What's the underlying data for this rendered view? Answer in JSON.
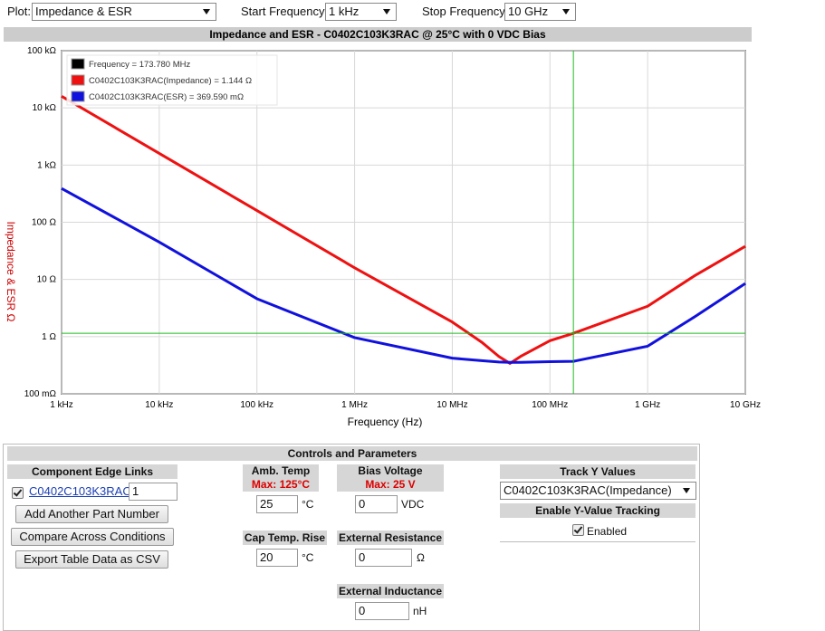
{
  "toolbar": {
    "plot_label": "Plot:",
    "plot_value": "Impedance & ESR",
    "start_label": "Start Frequency:",
    "start_value": "1 kHz",
    "stop_label": "Stop Frequency:",
    "stop_value": "10 GHz"
  },
  "chart_data": {
    "type": "line",
    "title": "Impedance and ESR - C0402C103K3RAC @ 25°C with 0 VDC Bias",
    "x_label": "Frequency (Hz)",
    "y_label": "Impedance & ESR Ω",
    "xscale": "log",
    "yscale": "log",
    "grid": true,
    "xlim": [
      1000,
      10000000000
    ],
    "ylim": [
      0.1,
      100000
    ],
    "xticks": [
      {
        "value": 1000,
        "label": "1 kHz"
      },
      {
        "value": 10000,
        "label": "10 kHz"
      },
      {
        "value": 100000,
        "label": "100 kHz"
      },
      {
        "value": 1000000,
        "label": "1 MHz"
      },
      {
        "value": 10000000,
        "label": "10 MHz"
      },
      {
        "value": 100000000,
        "label": "100 MHz"
      },
      {
        "value": 1000000000,
        "label": "1 GHz"
      },
      {
        "value": 10000000000,
        "label": "10 GHz"
      }
    ],
    "yticks": [
      {
        "value": 0.1,
        "label": "100 mΩ"
      },
      {
        "value": 1,
        "label": "1 Ω"
      },
      {
        "value": 10,
        "label": "10 Ω"
      },
      {
        "value": 100,
        "label": "100 Ω"
      },
      {
        "value": 1000,
        "label": "1 kΩ"
      },
      {
        "value": 10000,
        "label": "10 kΩ"
      },
      {
        "value": 100000,
        "label": "100 kΩ"
      }
    ],
    "x": [
      1000,
      10000,
      100000,
      1000000,
      10000000,
      20000000,
      30000000,
      39000000,
      50000000,
      100000000,
      173780000,
      1000000000,
      3000000000,
      10000000000
    ],
    "series": [
      {
        "color": "#ee1111",
        "values": [
          16000,
          1600,
          160,
          16,
          1.8,
          0.8,
          0.45,
          0.34,
          0.45,
          0.85,
          1.144,
          3.4,
          11.5,
          38
        ]
      },
      {
        "color": "#1111dd",
        "values": [
          390,
          45,
          4.6,
          0.96,
          0.42,
          0.38,
          0.36,
          0.355,
          0.355,
          0.365,
          0.3696,
          0.68,
          2.2,
          8.5
        ]
      }
    ],
    "cursor": {
      "x": 173780000,
      "y": 1.144,
      "color": "#22bb22"
    },
    "legend": [
      {
        "label": "Frequency = 173.780 MHz",
        "color": "#000000"
      },
      {
        "label": "C0402C103K3RAC(Impedance) = 1.144 Ω",
        "color": "#ee1111"
      },
      {
        "label": "C0402C103K3RAC(ESR) = 369.590 mΩ",
        "color": "#1111dd"
      }
    ]
  },
  "panel": {
    "title": "Controls and Parameters",
    "edge_links": {
      "header": "Component Edge Links",
      "part": "C0402C103K3RAC",
      "quantity": "1",
      "buttons": [
        "Add Another Part Number",
        "Compare Across Conditions",
        "Export Table Data as CSV"
      ]
    },
    "amb_temp": {
      "header": "Amb. Temp",
      "max": "Max: 125°C",
      "value": "25",
      "unit": "°C"
    },
    "cap_temp_rise": {
      "header": "Cap Temp. Rise",
      "value": "20",
      "unit": "°C"
    },
    "bias_voltage": {
      "header": "Bias Voltage",
      "max": "Max: 25 V",
      "value": "0",
      "unit": "VDC"
    },
    "ext_resistance": {
      "header": "External Resistance",
      "value": "0",
      "unit": "Ω"
    },
    "ext_inductance": {
      "header": "External Inductance",
      "value": "0",
      "unit": "nH"
    },
    "track": {
      "header": "Track Y Values",
      "value": "C0402C103K3RAC(Impedance)",
      "enable_header": "Enable Y-Value Tracking",
      "enabled_label": "Enabled"
    }
  }
}
